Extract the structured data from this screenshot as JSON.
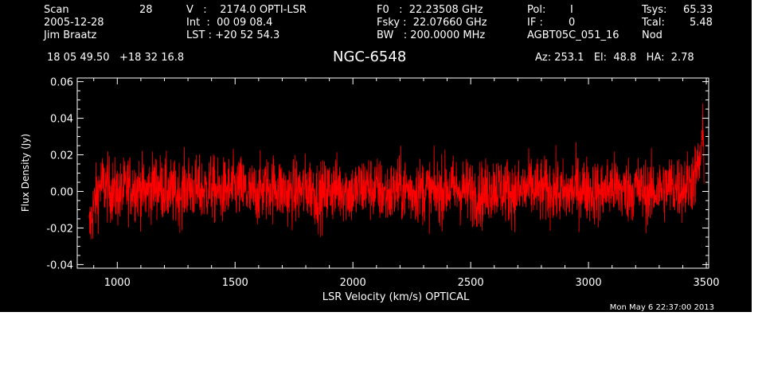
{
  "header": {
    "scan_label": "Scan",
    "scan_value": "28",
    "date": "2005-12-28",
    "observer": "Jim Braatz",
    "v_line": "V   :    2174.0 OPTI-LSR",
    "int_line": "Int  :  00 09 08.4",
    "lst_line": "LST : +20 52 54.3",
    "f0_line": "F0   :  22.23508 GHz",
    "fsky_line": "Fsky :  22.07660 GHz",
    "bw_line": "BW   : 200.0000 MHz",
    "pol_label": "Pol:",
    "pol_value": "I",
    "if_label": "IF :",
    "if_value": "0",
    "project": "AGBT05C_051_16",
    "tsys_label": "Tsys:",
    "tsys_value": "65.33",
    "tcal_label": "Tcal:",
    "tcal_value": "5.48",
    "mode": "Nod",
    "coords": "18 05 49.50   +18 32 16.8",
    "source": "NGC-6548",
    "az_el_ha": "Az: 253.1   El:  48.8   HA:  2.78"
  },
  "timestamp": "Mon May  6 22:37:00 2013",
  "colors": {
    "background": "#000000",
    "foreground": "#ffffff",
    "series": "#ff0000"
  },
  "chart_data": {
    "type": "line",
    "title": "NGC-6548",
    "xlabel": "LSR Velocity (km/s) OPTICAL",
    "ylabel": "Flux Density (Jy)",
    "xlim": [
      830,
      3510
    ],
    "ylim": [
      -0.042,
      0.062
    ],
    "xticks": [
      1000,
      1500,
      2000,
      2500,
      3000,
      3500
    ],
    "yticks": [
      -0.04,
      -0.02,
      0.0,
      0.02,
      0.04,
      0.06
    ],
    "ytick_labels": [
      "-0.04",
      "-0.02",
      "0.00",
      "0.02",
      "0.04",
      "0.06"
    ],
    "grid": false,
    "series": [
      {
        "x": [
          880,
          900,
          930,
          970,
          1010,
          1050,
          1090,
          1120,
          1160,
          1200,
          1250,
          1300,
          1350,
          1400,
          1430,
          1470,
          1520,
          1570,
          1620,
          1670,
          1720,
          1770,
          1820,
          1860,
          1900,
          1950,
          2000,
          2050,
          2100,
          2150,
          2200,
          2250,
          2300,
          2350,
          2400,
          2450,
          2500,
          2550,
          2600,
          2650,
          2700,
          2750,
          2800,
          2850,
          2900,
          2950,
          3000,
          3050,
          3100,
          3150,
          3200,
          3250,
          3300,
          3350,
          3400,
          3430,
          3450,
          3465,
          3475,
          3480,
          3485,
          3490
        ],
        "y": [
          -0.022,
          -0.008,
          0.004,
          0.001,
          -0.002,
          0.003,
          0.002,
          -0.001,
          0.004,
          0.001,
          -0.002,
          0.003,
          0.0,
          0.002,
          -0.001,
          0.001,
          0.002,
          -0.002,
          0.001,
          0.003,
          -0.001,
          0.0,
          0.002,
          -0.003,
          0.001,
          0.002,
          -0.001,
          0.003,
          0.001,
          -0.002,
          0.002,
          0.0,
          0.001,
          -0.001,
          0.002,
          0.001,
          0.0,
          -0.002,
          0.003,
          0.001,
          -0.001,
          0.002,
          0.0,
          0.001,
          -0.002,
          0.002,
          0.001,
          -0.001,
          0.003,
          0.0,
          0.002,
          -0.001,
          0.001,
          0.003,
          0.002,
          0.005,
          0.008,
          0.012,
          0.018,
          0.024,
          0.03,
          0.02
        ],
        "noise_rms": 0.009
      }
    ]
  }
}
